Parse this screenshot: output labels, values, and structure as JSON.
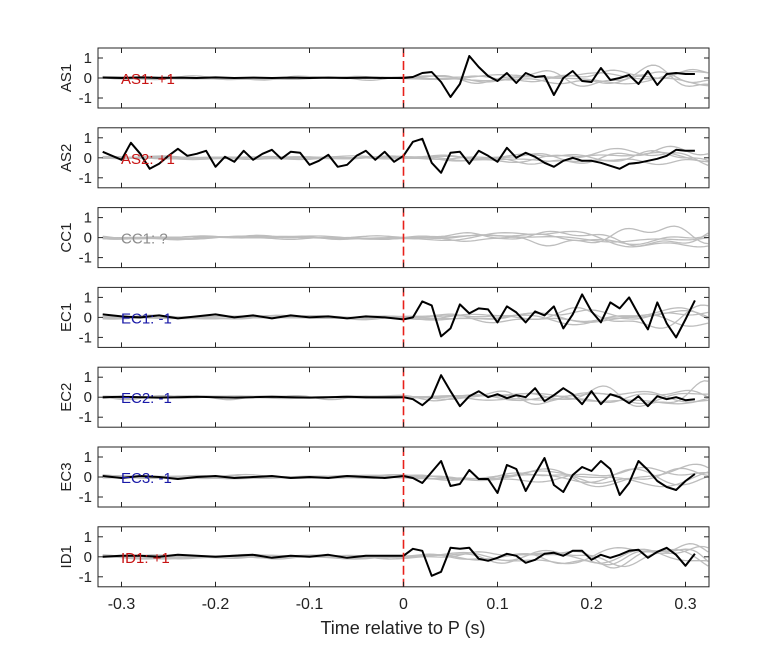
{
  "chart_data": {
    "type": "line",
    "xlabel": "Time relative to P (s)",
    "xlim": [
      -0.325,
      0.325
    ],
    "ylim": [
      -1.5,
      1.5
    ],
    "x_ticks": [
      -0.3,
      -0.2,
      -0.1,
      0,
      0.1,
      0.2,
      0.3
    ],
    "x_tick_labels": [
      "-0.3",
      "-0.2",
      "-0.1",
      "0",
      "0.1",
      "0.2",
      "0.3"
    ],
    "y_ticks": [
      1,
      0,
      -1
    ],
    "y_tick_labels": [
      "1",
      "0",
      "-1"
    ],
    "p_arrival_time": 0,
    "colors": {
      "trace": "#000000",
      "background_traces": "#bdbdbd",
      "p_marker": "#e8201a",
      "positive_label": "#c81414",
      "negative_label": "#1a1aa8",
      "unknown_label": "#8c8c8c"
    },
    "panels": [
      {
        "station": "AS1",
        "annotation": "AS1: +1",
        "polarity": "+1",
        "x": [
          -0.32,
          -0.3,
          -0.28,
          -0.26,
          -0.24,
          -0.22,
          -0.2,
          -0.18,
          -0.16,
          -0.14,
          -0.12,
          -0.1,
          -0.08,
          -0.06,
          -0.04,
          -0.02,
          0,
          0.01,
          0.02,
          0.03,
          0.04,
          0.05,
          0.06,
          0.07,
          0.08,
          0.09,
          0.1,
          0.11,
          0.12,
          0.13,
          0.14,
          0.15,
          0.16,
          0.17,
          0.18,
          0.19,
          0.2,
          0.21,
          0.22,
          0.23,
          0.24,
          0.25,
          0.26,
          0.27,
          0.28,
          0.29,
          0.3,
          0.31
        ],
        "values": [
          0.02,
          0.0,
          0.03,
          0.0,
          0.02,
          0.0,
          0.03,
          0.0,
          0.02,
          0.0,
          0.02,
          0.0,
          0.02,
          0.0,
          0.02,
          0.0,
          0.0,
          0.05,
          0.25,
          0.3,
          -0.2,
          -0.95,
          -0.3,
          1.1,
          0.55,
          0.1,
          -0.15,
          0.25,
          -0.25,
          0.25,
          0.05,
          0.1,
          -0.85,
          0.0,
          0.35,
          -0.15,
          -0.2,
          0.5,
          -0.1,
          0.0,
          0.15,
          -0.3,
          0.35,
          -0.35,
          0.2,
          0.25,
          0.2,
          0.2
        ]
      },
      {
        "station": "AS2",
        "annotation": "AS2: +1",
        "polarity": "+1",
        "x": [
          -0.32,
          -0.31,
          -0.3,
          -0.29,
          -0.28,
          -0.27,
          -0.26,
          -0.25,
          -0.24,
          -0.23,
          -0.22,
          -0.21,
          -0.2,
          -0.19,
          -0.18,
          -0.17,
          -0.16,
          -0.15,
          -0.14,
          -0.13,
          -0.12,
          -0.11,
          -0.1,
          -0.09,
          -0.08,
          -0.07,
          -0.06,
          -0.05,
          -0.04,
          -0.03,
          -0.02,
          -0.01,
          0,
          0.01,
          0.02,
          0.03,
          0.04,
          0.05,
          0.06,
          0.07,
          0.08,
          0.09,
          0.1,
          0.11,
          0.12,
          0.13,
          0.14,
          0.15,
          0.16,
          0.17,
          0.18,
          0.19,
          0.2,
          0.21,
          0.22,
          0.23,
          0.24,
          0.25,
          0.26,
          0.27,
          0.28,
          0.29,
          0.3,
          0.31
        ],
        "values": [
          0.3,
          0.1,
          -0.1,
          0.75,
          0.2,
          -0.55,
          -0.3,
          0.1,
          0.45,
          0.1,
          0.2,
          0.35,
          -0.45,
          0.05,
          -0.2,
          0.35,
          -0.1,
          0.2,
          0.4,
          -0.05,
          0.3,
          0.25,
          -0.35,
          -0.15,
          0.15,
          -0.45,
          -0.35,
          0.1,
          0.35,
          -0.1,
          0.3,
          -0.2,
          0.1,
          0.8,
          0.95,
          -0.25,
          -0.75,
          0.25,
          0.3,
          -0.3,
          0.35,
          0.1,
          -0.2,
          0.5,
          0.0,
          0.25,
          0.05,
          -0.25,
          -0.45,
          -0.15,
          0.0,
          -0.15,
          -0.15,
          -0.25,
          -0.4,
          -0.55,
          -0.3,
          -0.25,
          -0.15,
          -0.05,
          0.1,
          0.4,
          0.35,
          0.35
        ]
      },
      {
        "station": "CC1",
        "annotation": "CC1: ?",
        "polarity": "?",
        "x": [],
        "values": []
      },
      {
        "station": "EC1",
        "annotation": "EC1: -1",
        "polarity": "-1",
        "x": [
          -0.32,
          -0.3,
          -0.28,
          -0.26,
          -0.24,
          -0.22,
          -0.2,
          -0.18,
          -0.16,
          -0.14,
          -0.12,
          -0.1,
          -0.08,
          -0.06,
          -0.04,
          -0.02,
          0,
          0.01,
          0.02,
          0.03,
          0.04,
          0.05,
          0.06,
          0.07,
          0.08,
          0.09,
          0.1,
          0.11,
          0.12,
          0.13,
          0.14,
          0.15,
          0.16,
          0.17,
          0.18,
          0.19,
          0.2,
          0.21,
          0.22,
          0.23,
          0.24,
          0.25,
          0.26,
          0.27,
          0.28,
          0.29,
          0.3,
          0.31
        ],
        "values": [
          0.15,
          0.05,
          0.0,
          0.1,
          -0.05,
          0.05,
          0.15,
          0.0,
          0.1,
          -0.05,
          0.1,
          0.0,
          0.05,
          -0.05,
          0.05,
          0.0,
          -0.1,
          0.0,
          0.8,
          0.6,
          -0.95,
          -0.55,
          0.65,
          0.2,
          0.45,
          0.4,
          -0.25,
          0.55,
          0.25,
          -0.25,
          0.3,
          0.1,
          0.55,
          -0.55,
          0.15,
          1.15,
          0.3,
          -0.25,
          0.75,
          0.45,
          1.0,
          0.15,
          -0.6,
          0.75,
          -0.3,
          -1.0,
          -0.1,
          0.85
        ]
      },
      {
        "station": "EC2",
        "annotation": "EC2: -1",
        "polarity": "-1",
        "x": [
          -0.32,
          -0.3,
          -0.28,
          -0.26,
          -0.24,
          -0.22,
          -0.2,
          -0.18,
          -0.16,
          -0.14,
          -0.12,
          -0.1,
          -0.08,
          -0.06,
          -0.04,
          -0.02,
          0,
          0.01,
          0.02,
          0.03,
          0.04,
          0.05,
          0.06,
          0.07,
          0.08,
          0.09,
          0.1,
          0.11,
          0.12,
          0.13,
          0.14,
          0.15,
          0.16,
          0.17,
          0.18,
          0.19,
          0.2,
          0.21,
          0.22,
          0.23,
          0.24,
          0.25,
          0.26,
          0.27,
          0.28,
          0.29,
          0.3,
          0.31
        ],
        "values": [
          0.0,
          0.02,
          0.0,
          -0.02,
          0.0,
          0.02,
          0.0,
          -0.02,
          0.0,
          0.02,
          0.0,
          -0.02,
          0.0,
          0.02,
          0.0,
          0.0,
          0.0,
          -0.1,
          -0.4,
          0.0,
          1.1,
          0.3,
          -0.45,
          0.05,
          0.3,
          0.0,
          0.15,
          -0.05,
          0.1,
          0.0,
          0.45,
          -0.2,
          0.1,
          0.45,
          0.15,
          -0.35,
          0.3,
          -0.35,
          0.15,
          0.0,
          -0.3,
          0.05,
          -0.45,
          0.05,
          -0.1,
          0.0,
          -0.15,
          -0.1
        ]
      },
      {
        "station": "EC3",
        "annotation": "EC3: -1",
        "polarity": "-1",
        "x": [
          -0.32,
          -0.3,
          -0.28,
          -0.26,
          -0.24,
          -0.22,
          -0.2,
          -0.18,
          -0.16,
          -0.14,
          -0.12,
          -0.1,
          -0.08,
          -0.06,
          -0.04,
          -0.02,
          0,
          0.01,
          0.02,
          0.03,
          0.04,
          0.05,
          0.06,
          0.07,
          0.08,
          0.09,
          0.1,
          0.11,
          0.12,
          0.13,
          0.14,
          0.15,
          0.16,
          0.17,
          0.18,
          0.19,
          0.2,
          0.21,
          0.22,
          0.23,
          0.24,
          0.25,
          0.26,
          0.27,
          0.28,
          0.29,
          0.3,
          0.31
        ],
        "values": [
          0.05,
          -0.05,
          0.05,
          0.0,
          -0.1,
          0.0,
          0.05,
          -0.05,
          0.0,
          0.05,
          -0.05,
          0.0,
          -0.05,
          0.05,
          0.0,
          -0.05,
          0.05,
          -0.05,
          -0.3,
          0.25,
          0.8,
          -0.45,
          -0.35,
          0.35,
          -0.1,
          -0.1,
          -0.8,
          0.6,
          0.4,
          -0.7,
          0.15,
          0.95,
          -0.4,
          -0.75,
          0.1,
          0.5,
          0.3,
          0.8,
          0.4,
          -0.9,
          -0.3,
          0.8,
          0.35,
          -0.2,
          -0.5,
          -0.65,
          -0.2,
          0.15
        ]
      },
      {
        "station": "ID1",
        "annotation": "ID1: +1",
        "polarity": "+1",
        "x": [
          -0.32,
          -0.3,
          -0.28,
          -0.26,
          -0.24,
          -0.22,
          -0.2,
          -0.18,
          -0.16,
          -0.14,
          -0.12,
          -0.1,
          -0.08,
          -0.06,
          -0.04,
          -0.02,
          0,
          0.01,
          0.02,
          0.03,
          0.04,
          0.05,
          0.06,
          0.07,
          0.08,
          0.09,
          0.1,
          0.11,
          0.12,
          0.13,
          0.14,
          0.15,
          0.16,
          0.17,
          0.18,
          0.19,
          0.2,
          0.21,
          0.22,
          0.23,
          0.24,
          0.25,
          0.26,
          0.27,
          0.28,
          0.29,
          0.3,
          0.31
        ],
        "values": [
          0.0,
          0.05,
          0.05,
          0.0,
          0.1,
          0.05,
          0.0,
          0.05,
          0.1,
          -0.05,
          0.05,
          0.0,
          0.1,
          -0.05,
          0.05,
          0.05,
          0.05,
          0.4,
          0.3,
          -0.95,
          -0.75,
          0.45,
          0.4,
          0.45,
          -0.1,
          -0.2,
          -0.05,
          0.15,
          0.05,
          -0.3,
          -0.15,
          0.15,
          0.2,
          0.05,
          0.3,
          0.3,
          -0.15,
          0.1,
          -0.05,
          0.1,
          0.3,
          0.35,
          -0.05,
          0.25,
          0.45,
          0.1,
          -0.45,
          0.15
        ]
      }
    ]
  }
}
